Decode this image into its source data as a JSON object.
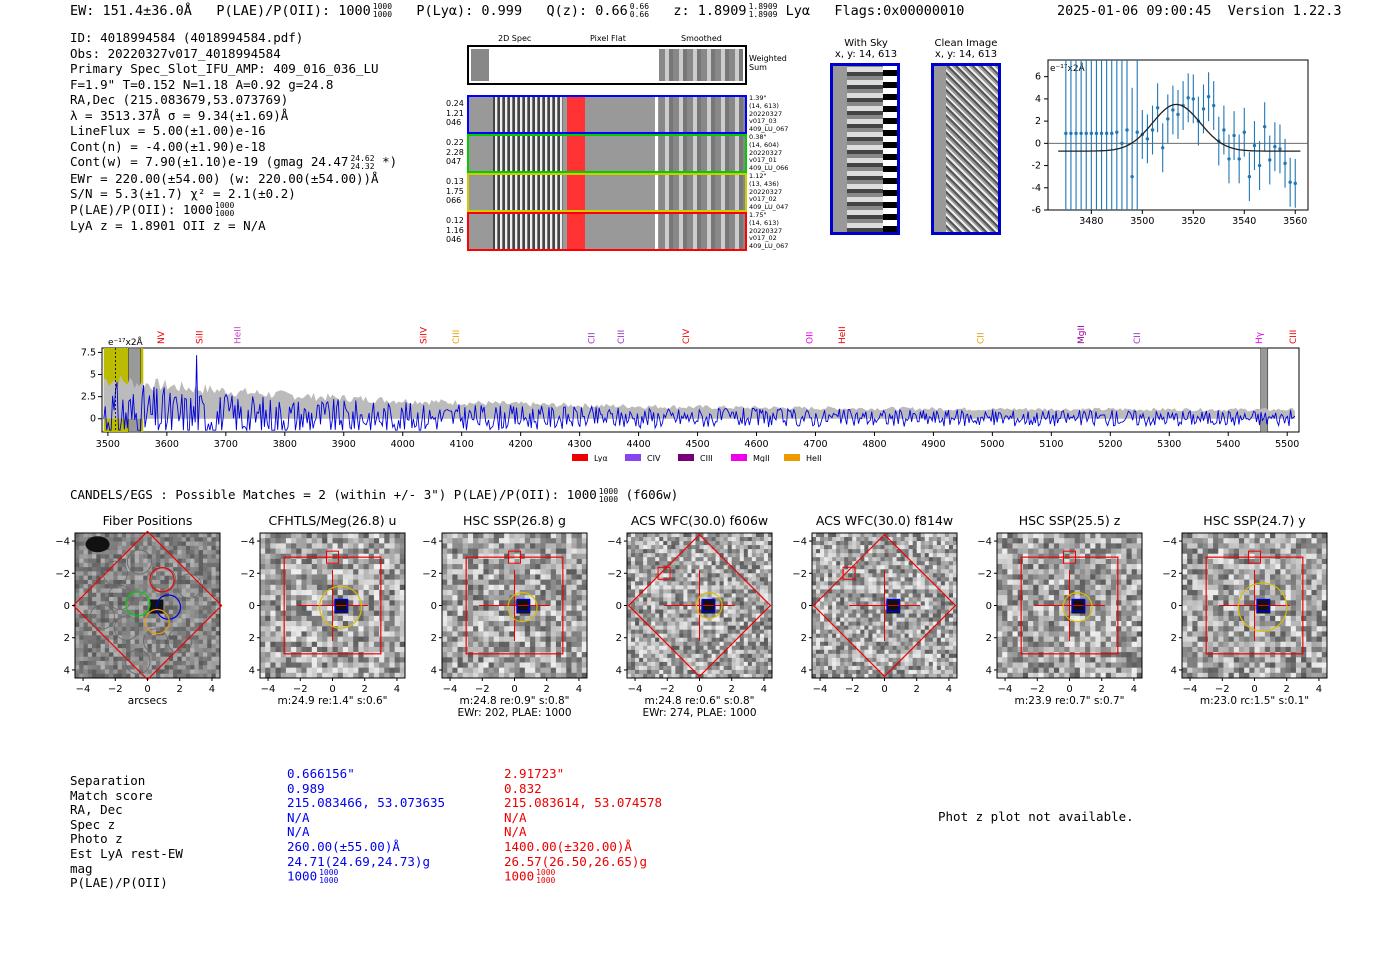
{
  "header": {
    "ew": "EW: 151.4±36.0Å",
    "plae_label": "P(LAE)/P(OII): 1000",
    "plae_hi": "1000",
    "plae_lo": "1000",
    "plya": "P(Lyα): 0.999",
    "qz_label": "Q(z): 0.66",
    "qz_hi": "0.66",
    "qz_lo": "0.66",
    "z_label": "z: 1.8909",
    "z_hi": "1.8909",
    "z_lo": "1.8909",
    "line": "Lyα",
    "flags": "Flags:0x00000010",
    "timestamp": "2025-01-06 09:00:45",
    "version": "Version 1.22.3"
  },
  "info": {
    "lines": [
      "ID: 4018994584 (4018994584.pdf)",
      "Obs: 20220327v017_4018994584",
      "Primary Spec_Slot_IFU_AMP: 409_016_036_LU",
      "F=1.9\"  T=0.152  N=1.18  A=0.92  g=24.8",
      "RA,Dec (215.083679,53.073769)",
      "λ = 3513.37Å   σ = 9.34(±1.69)Å",
      "LineFlux = 5.00(±1.00)e-16",
      "Cont(n) = -4.00(±1.90)e-18",
      "Cont(w) = 7.90(±1.10)e-19 (gmag 24.47",
      "EWr = 220.00(±54.00) (w: 220.00(±54.00))Å",
      "S/N = 5.3(±1.7)  χ² = 2.1(±0.2)",
      "P(LAE)/P(OII): 1000",
      "LyA z = 1.8901  OII z = N/A"
    ],
    "gmag_hi": "24.62",
    "gmag_lo": "24.32",
    "gmag_tail": "*)",
    "plae_hi": "1000",
    "plae_lo": "1000"
  },
  "cutout_panel": {
    "col_2d": "2D Spec",
    "col_flat": "Pixel Flat",
    "col_smooth": "Smoothed",
    "weighted": "Weighted Sum",
    "rows": [
      {
        "left": [
          "0.24",
          "1.21",
          "046"
        ],
        "right": [
          "1.39\"",
          "(14, 613)",
          "20220327",
          "v017_03",
          "409_LU_067"
        ],
        "color": "#0000ff"
      },
      {
        "left": [
          "0.22",
          "2.28",
          "047"
        ],
        "right": [
          "0.38\"",
          "(14, 604)",
          "20220327",
          "v017_01",
          "409_LU_066"
        ],
        "color": "#00cc00"
      },
      {
        "left": [
          "0.13",
          "1.75",
          "066"
        ],
        "right": [
          "1.12\"",
          "(13, 436)",
          "20220327",
          "v017_02",
          "409_LU_047"
        ],
        "color": "#cccc00"
      },
      {
        "left": [
          "0.12",
          "1.16",
          "046"
        ],
        "right": [
          "1.75\"",
          "(14, 613)",
          "20220327",
          "v017_02",
          "409_LU_067"
        ],
        "color": "#ff0000"
      }
    ]
  },
  "sky": {
    "title1": "With Sky",
    "sub1": "x, y: 14, 613",
    "title2": "Clean Image",
    "sub2": "x, y: 14, 613"
  },
  "fit_plot": {
    "unit_label": "e⁻¹⁷x2Å",
    "chart_data": {
      "type": "scatter",
      "title": "",
      "x": [
        3470,
        3472,
        3474,
        3476,
        3478,
        3480,
        3482,
        3484,
        3486,
        3488,
        3490,
        3492,
        3494,
        3496,
        3498,
        3500,
        3502,
        3504,
        3506,
        3508,
        3510,
        3512,
        3514,
        3516,
        3518,
        3520,
        3522,
        3524,
        3526,
        3528,
        3530,
        3532,
        3534,
        3536,
        3538,
        3540,
        3542,
        3544,
        3546,
        3548,
        3550,
        3552,
        3554,
        3556,
        3558,
        3560
      ],
      "y": [
        0.9,
        0.9,
        0.9,
        0.9,
        0.9,
        0.9,
        0.9,
        0.9,
        0.9,
        0.9,
        1.0,
        0.0,
        1.2,
        -3.0,
        1.0,
        0.8,
        0.4,
        1.2,
        3.2,
        -0.4,
        2.2,
        3.0,
        2.6,
        3.4,
        4.1,
        4.0,
        2.0,
        3.1,
        4.2,
        3.4,
        0.2,
        1.2,
        -1.4,
        0.7,
        -1.4,
        1.0,
        -3.0,
        -0.2,
        -2.0,
        1.5,
        -1.5,
        -0.3,
        -0.5,
        -1.8,
        -3.5,
        -3.6
      ],
      "fit_mu": 3513.37,
      "fit_sigma": 9.34,
      "fit_amp": 4.2,
      "fit_base": -0.7,
      "xlim": [
        3463,
        3565
      ],
      "ylim": [
        -6,
        7.5
      ],
      "xticks": [
        3480,
        3500,
        3520,
        3540,
        3560
      ],
      "yticks": [
        -6,
        -4,
        -2,
        0,
        2,
        4,
        6
      ]
    }
  },
  "spectrum": {
    "unit_label": "e⁻¹⁷x2Å",
    "lines_labels": [
      {
        "name": "NV",
        "x": 3590,
        "color": "#ee0000"
      },
      {
        "name": "SiII",
        "x": 3655,
        "color": "#ee0000"
      },
      {
        "name": "HeII",
        "x": 3720,
        "color": "#cc44cc"
      },
      {
        "name": "SiIV",
        "x": 4035,
        "color": "#ee0000"
      },
      {
        "name": "CIII",
        "x": 4090,
        "color": "#e8a000"
      },
      {
        "name": "CII",
        "x": 4320,
        "color": "#9933cc"
      },
      {
        "name": "CIII",
        "x": 4370,
        "color": "#9933cc"
      },
      {
        "name": "CIV",
        "x": 4480,
        "color": "#ee0000"
      },
      {
        "name": "OII",
        "x": 4690,
        "color": "#ee00ee"
      },
      {
        "name": "HeII",
        "x": 4745,
        "color": "#ee0000"
      },
      {
        "name": "CII",
        "x": 4980,
        "color": "#e8a000"
      },
      {
        "name": "MgII",
        "x": 5150,
        "color": "#990099"
      },
      {
        "name": "CII",
        "x": 5245,
        "color": "#9933cc"
      },
      {
        "name": "Hγ",
        "x": 5452,
        "color": "#ee00ee"
      },
      {
        "name": "CIII",
        "x": 5510,
        "color": "#ee0000"
      }
    ],
    "legend": [
      {
        "name": "Lyα",
        "color": "#ee0000"
      },
      {
        "name": "CIV",
        "color": "#8844ee"
      },
      {
        "name": "CIII",
        "color": "#770077"
      },
      {
        "name": "MgII",
        "color": "#ee00ee"
      },
      {
        "name": "HeII",
        "color": "#ee9900"
      }
    ],
    "chart_data": {
      "type": "line",
      "title": "",
      "xlim": [
        3490,
        5520
      ],
      "ylim": [
        -1.5,
        8
      ],
      "xticks": [
        3500,
        3600,
        3700,
        3800,
        3900,
        4000,
        4100,
        4200,
        4300,
        4400,
        4500,
        4600,
        4700,
        4800,
        4900,
        5000,
        5100,
        5200,
        5300,
        5400,
        5500
      ],
      "yticks": [
        0.0,
        2.5,
        5.0,
        7.5
      ],
      "highlight_range": [
        3493,
        3560
      ],
      "hatch_ranges": [
        [
          3535,
          3555
        ],
        [
          5455,
          5467
        ]
      ],
      "spike": {
        "x": 3650,
        "y": 7.2
      },
      "series": [
        {
          "name": "flux",
          "color": "#0000dd",
          "note": "noisy spectrum, amplitude decaying from ~4 near 3500 to ~1 at 5500"
        },
        {
          "name": "error",
          "color": "#bbbbbb",
          "note": "error envelope, ~3.5 near 3500 to ~1.0 at 5500"
        }
      ]
    }
  },
  "catalog": {
    "title_prefix": "CANDELS/EGS : Possible Matches = 2 (within +/- 3\")  P(LAE)/P(OII): 1000",
    "plae_hi": "1000",
    "plae_lo": "1000",
    "filter": "(f606w)",
    "axis_label": "arcsecs",
    "ticks": [
      "4",
      "2",
      "0",
      "−2",
      "−4"
    ],
    "xticks": [
      "−4",
      "−2",
      "0",
      "2",
      "4"
    ],
    "panels": [
      {
        "title": "Fiber Positions",
        "cap1": "arcsecs",
        "cap2": ""
      },
      {
        "title": "CFHTLS/Meg(26.8) u",
        "cap1": "m:24.9  re:1.4\"  s:0.6\"",
        "cap2": ""
      },
      {
        "title": "HSC SSP(26.8) g",
        "cap1": "m:24.8  re:0.9\"  s:0.8\"",
        "cap2": "EWr: 202, PLAE: 1000"
      },
      {
        "title": "ACS WFC(30.0) f606w",
        "cap1": "m:24.8  re:0.6\"  s:0.8\"",
        "cap2": "EWr: 274, PLAE: 1000"
      },
      {
        "title": "ACS WFC(30.0) f814w",
        "cap1": "",
        "cap2": ""
      },
      {
        "title": "HSC SSP(25.5) z",
        "cap1": "m:23.9  re:0.7\"  s:0.7\"",
        "cap2": ""
      },
      {
        "title": "HSC SSP(24.7) y",
        "cap1": "m:23.0  rc:1.5\"  s:0.1\"",
        "cap2": ""
      }
    ]
  },
  "matches": {
    "labels": [
      "Separation",
      "Match score",
      "RA, Dec",
      "Spec z",
      "Photo z",
      "Est LyA rest-EW",
      "mag",
      "P(LAE)/P(OII)"
    ],
    "m1": [
      "0.666156\"",
      "0.989",
      "215.083466, 53.073635",
      "N/A",
      "N/A",
      "260.00(±55.00)Å",
      "24.71(24.69,24.73)g",
      "1000"
    ],
    "m2": [
      "2.91723\"",
      "0.832",
      "215.083614, 53.074578",
      "N/A",
      "N/A",
      "1400.00(±320.00)Å",
      "26.57(26.50,26.65)g",
      "1000"
    ],
    "frac_hi": "1000",
    "frac_lo": "1000",
    "photz_note": "Phot z plot not available."
  },
  "colors": {
    "match1": "#0000ee",
    "match2": "#ee0000",
    "gauss_yellow": "#ddb000"
  }
}
